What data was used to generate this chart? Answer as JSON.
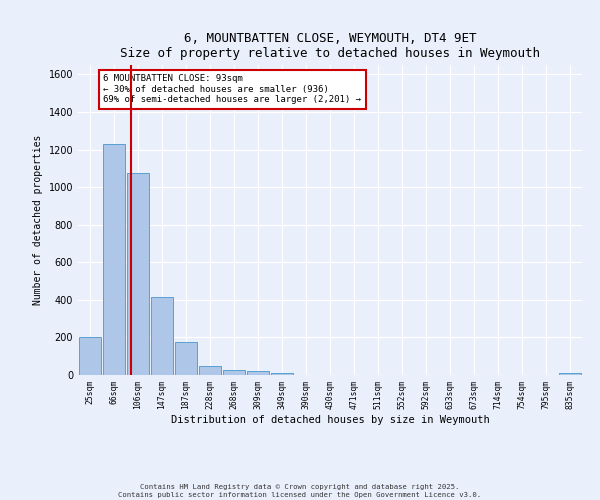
{
  "title": "6, MOUNTBATTEN CLOSE, WEYMOUTH, DT4 9ET",
  "subtitle": "Size of property relative to detached houses in Weymouth",
  "xlabel": "Distribution of detached houses by size in Weymouth",
  "ylabel": "Number of detached properties",
  "bar_labels": [
    "25sqm",
    "66sqm",
    "106sqm",
    "147sqm",
    "187sqm",
    "228sqm",
    "268sqm",
    "309sqm",
    "349sqm",
    "390sqm",
    "430sqm",
    "471sqm",
    "511sqm",
    "552sqm",
    "592sqm",
    "633sqm",
    "673sqm",
    "714sqm",
    "754sqm",
    "795sqm",
    "835sqm"
  ],
  "bar_values": [
    200,
    1230,
    1075,
    415,
    175,
    50,
    25,
    20,
    10,
    0,
    0,
    0,
    0,
    0,
    0,
    0,
    0,
    0,
    0,
    0,
    10
  ],
  "bar_color": "#aec6e8",
  "bar_edge_color": "#5a9fd4",
  "background_color": "#eaf0fb",
  "grid_color": "#ffffff",
  "vline_x": 1.72,
  "vline_color": "#cc0000",
  "annotation_text": "6 MOUNTBATTEN CLOSE: 93sqm\n← 30% of detached houses are smaller (936)\n69% of semi-detached houses are larger (2,201) →",
  "annotation_box_color": "#ffffff",
  "annotation_box_edge": "#cc0000",
  "ylim": [
    0,
    1650
  ],
  "yticks": [
    0,
    200,
    400,
    600,
    800,
    1000,
    1200,
    1400,
    1600
  ],
  "footnote1": "Contains HM Land Registry data © Crown copyright and database right 2025.",
  "footnote2": "Contains public sector information licensed under the Open Government Licence v3.0."
}
